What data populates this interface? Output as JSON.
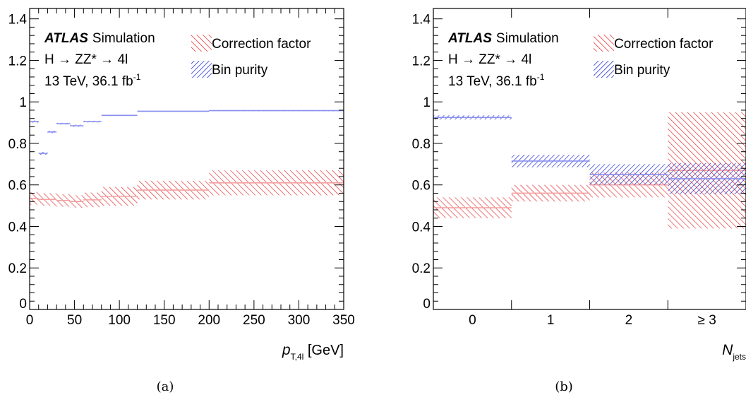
{
  "chart_data": [
    {
      "type": "bar",
      "panel_caption": "(a)",
      "experiment": "ATLAS",
      "status": "Simulation",
      "process": "H → ZZ* → 4l",
      "energy_lumi_text": "13 TeV, 36.1 fb",
      "lumi_unit_exponent": "-1",
      "xlabel_main": "p",
      "xlabel_sub": "T,4l",
      "xlabel_unit": " [GeV]",
      "ylabel": "",
      "xlim": [
        0,
        350
      ],
      "ylim": [
        0,
        1.45
      ],
      "xticks": [
        "0",
        "50",
        "100",
        "150",
        "200",
        "250",
        "300",
        "350"
      ],
      "yticks": [
        "0",
        "0.2",
        "0.4",
        "0.6",
        "0.8",
        "1",
        "1.2",
        "1.4"
      ],
      "legend": [
        "Correction factor",
        "Bin purity"
      ],
      "legend_placement": "top-right",
      "grid": false,
      "bin_edges": [
        0,
        10,
        20,
        30,
        45,
        60,
        80,
        120,
        200,
        350
      ],
      "series": [
        {
          "name": "Correction factor",
          "color": "#e41a1c",
          "values": [
            0.535,
            0.53,
            0.53,
            0.525,
            0.52,
            0.528,
            0.545,
            0.575,
            0.61
          ],
          "uncertainty": [
            0.03,
            0.03,
            0.03,
            0.03,
            0.03,
            0.035,
            0.045,
            0.045,
            0.06
          ]
        },
        {
          "name": "Bin purity",
          "color": "#3b4fd6",
          "values": [
            0.905,
            0.752,
            0.855,
            0.895,
            0.885,
            0.905,
            0.935,
            0.955,
            0.958
          ],
          "uncertainty": [
            0.005,
            0.007,
            0.006,
            0.004,
            0.005,
            0.004,
            0.003,
            0.002,
            0.002
          ]
        }
      ]
    },
    {
      "type": "bar",
      "panel_caption": "(b)",
      "experiment": "ATLAS",
      "status": "Simulation",
      "process": "H → ZZ* → 4l",
      "energy_lumi_text": "13 TeV, 36.1 fb",
      "lumi_unit_exponent": "-1",
      "xlabel_main": "N",
      "xlabel_sub": "jets",
      "xlabel_unit": "",
      "ylabel": "",
      "ylim": [
        0,
        1.45
      ],
      "categories": [
        "0",
        "1",
        "2",
        "≥ 3"
      ],
      "yticks": [
        "0",
        "0.2",
        "0.4",
        "0.6",
        "0.8",
        "1",
        "1.2",
        "1.4"
      ],
      "legend": [
        "Correction factor",
        "Bin purity"
      ],
      "legend_placement": "top-right",
      "grid": false,
      "series": [
        {
          "name": "Correction factor",
          "color": "#e41a1c",
          "values": [
            0.49,
            0.56,
            0.6,
            0.67
          ],
          "uncertainty": [
            0.05,
            0.04,
            0.06,
            0.28
          ]
        },
        {
          "name": "Bin purity",
          "color": "#3b4fd6",
          "values": [
            0.925,
            0.715,
            0.65,
            0.63
          ],
          "uncertainty": [
            0.01,
            0.03,
            0.05,
            0.075
          ]
        }
      ]
    }
  ]
}
